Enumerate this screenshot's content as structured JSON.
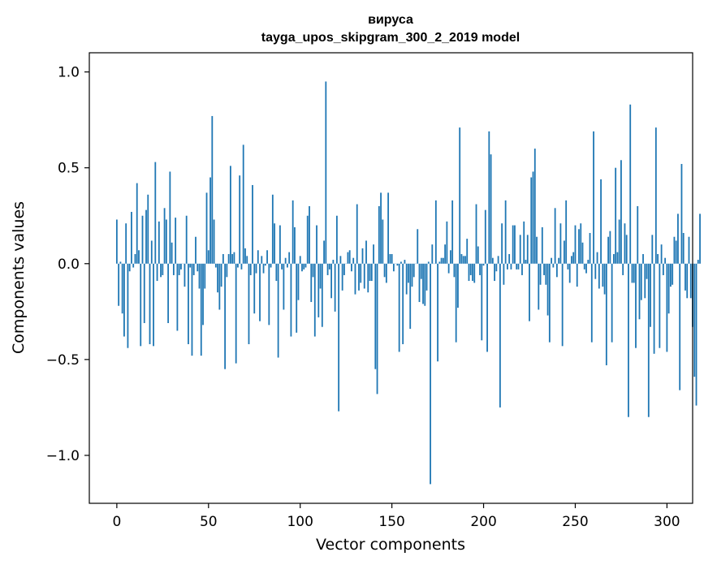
{
  "chart_data": {
    "type": "bar",
    "title_line1": "вируса",
    "title_line2": "tayga_upos_skipgram_300_2_2019 model",
    "xlabel": "Vector components",
    "ylabel": "Components values",
    "xlim": [
      -15,
      314
    ],
    "ylim": [
      -1.25,
      1.1
    ],
    "xticks": [
      0,
      50,
      100,
      150,
      200,
      250,
      300
    ],
    "xtick_labels": [
      "0",
      "50",
      "100",
      "150",
      "200",
      "250",
      "300"
    ],
    "yticks": [
      1.0,
      0.5,
      0.0,
      -0.5,
      -1.0
    ],
    "ytick_labels": [
      "1.0",
      "0.5",
      "0.0",
      "−0.5",
      "−1.0"
    ],
    "bar_color": "#1f77b4",
    "grid": false,
    "values": [
      0.23,
      -0.22,
      0.01,
      -0.26,
      -0.38,
      0.21,
      -0.44,
      -0.04,
      0.27,
      -0.02,
      0.05,
      0.42,
      0.07,
      -0.43,
      0.25,
      -0.31,
      0.28,
      0.36,
      -0.42,
      0.12,
      -0.43,
      0.53,
      -0.09,
      0.22,
      -0.07,
      -0.06,
      0.29,
      0.23,
      -0.31,
      0.48,
      0.11,
      -0.06,
      0.24,
      -0.35,
      -0.06,
      -0.03,
      0.0,
      -0.12,
      0.25,
      -0.42,
      -0.02,
      -0.48,
      -0.06,
      0.14,
      -0.04,
      -0.13,
      -0.48,
      -0.32,
      -0.13,
      0.37,
      0.07,
      0.45,
      0.77,
      0.23,
      -0.02,
      -0.15,
      -0.24,
      -0.12,
      0.05,
      -0.55,
      -0.07,
      0.05,
      0.51,
      0.05,
      0.06,
      -0.52,
      -0.02,
      0.46,
      -0.03,
      0.62,
      0.08,
      0.04,
      -0.42,
      -0.06,
      0.41,
      -0.26,
      -0.05,
      0.07,
      -0.3,
      0.04,
      -0.05,
      -0.01,
      0.07,
      -0.32,
      -0.02,
      0.36,
      0.21,
      -0.09,
      -0.49,
      0.2,
      -0.03,
      -0.24,
      0.03,
      -0.02,
      0.06,
      -0.38,
      0.33,
      0.19,
      -0.36,
      -0.19,
      0.04,
      -0.04,
      -0.03,
      -0.02,
      0.25,
      0.3,
      -0.2,
      -0.07,
      -0.38,
      0.2,
      -0.28,
      -0.13,
      -0.33,
      0.12,
      0.95,
      -0.06,
      -0.03,
      -0.18,
      0.02,
      -0.25,
      0.25,
      -0.77,
      0.04,
      -0.14,
      -0.06,
      0.0,
      0.06,
      0.07,
      -0.04,
      0.03,
      -0.16,
      0.31,
      -0.14,
      -0.1,
      0.08,
      -0.13,
      0.12,
      -0.15,
      -0.09,
      -0.09,
      0.1,
      -0.55,
      -0.68,
      0.3,
      0.37,
      0.23,
      -0.07,
      -0.1,
      0.37,
      0.05,
      0.05,
      -0.04,
      0.0,
      -0.01,
      -0.46,
      0.01,
      -0.42,
      0.02,
      -0.16,
      -0.1,
      -0.34,
      -0.12,
      -0.07,
      0.0,
      0.18,
      -0.2,
      -0.08,
      -0.21,
      -0.22,
      -0.14,
      0.01,
      -1.15,
      0.1,
      0.0,
      0.33,
      -0.51,
      0.01,
      0.03,
      0.03,
      0.1,
      0.22,
      -0.05,
      0.07,
      0.33,
      -0.07,
      -0.41,
      -0.23,
      0.71,
      0.05,
      0.04,
      0.04,
      0.13,
      -0.09,
      -0.06,
      -0.09,
      -0.1,
      0.31,
      0.09,
      -0.06,
      -0.4,
      -0.01,
      0.28,
      -0.46,
      0.69,
      0.57,
      0.03,
      -0.09,
      -0.04,
      0.04,
      -0.75,
      0.21,
      -0.11,
      0.33,
      -0.03,
      0.05,
      -0.03,
      0.2,
      0.2,
      -0.03,
      -0.03,
      0.15,
      -0.06,
      0.22,
      0.02,
      0.15,
      -0.3,
      0.45,
      0.48,
      0.6,
      0.14,
      -0.24,
      -0.11,
      0.19,
      -0.06,
      -0.11,
      -0.27,
      -0.41,
      0.03,
      -0.02,
      0.29,
      -0.07,
      0.03,
      0.21,
      -0.43,
      0.12,
      0.33,
      -0.03,
      -0.1,
      0.04,
      0.06,
      0.2,
      -0.12,
      0.18,
      0.21,
      0.11,
      -0.03,
      -0.05,
      0.02,
      0.16,
      -0.41,
      0.69,
      -0.08,
      0.06,
      -0.13,
      0.44,
      -0.12,
      -0.16,
      -0.53,
      0.14,
      0.17,
      -0.41,
      0.05,
      0.5,
      0.06,
      0.23,
      0.54,
      -0.06,
      0.21,
      0.15,
      -0.8,
      0.83,
      -0.1,
      -0.1,
      -0.44,
      0.3,
      -0.29,
      -0.19,
      0.05,
      -0.18,
      -0.08,
      -0.8,
      -0.33,
      0.15,
      -0.47,
      0.71,
      0.05,
      -0.44,
      0.1,
      -0.06,
      0.03,
      -0.46,
      -0.26,
      -0.12,
      -0.11,
      0.14,
      0.12,
      0.26,
      -0.66,
      0.52,
      0.16,
      -0.14,
      -0.18,
      0.14,
      -0.18,
      -0.33,
      -0.59,
      -0.74,
      0.02,
      0.26
    ]
  }
}
